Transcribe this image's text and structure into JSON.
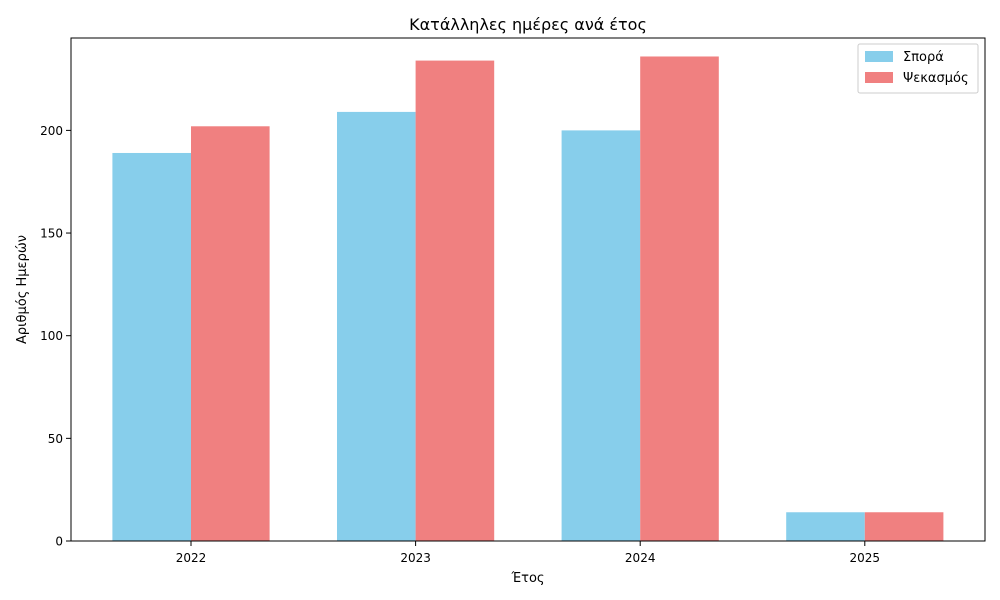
{
  "chart_data": {
    "type": "bar",
    "title": "Κατάλληλες ημέρες ανά έτος",
    "xlabel": "Έτος",
    "ylabel": "Αριθμός Ημερών",
    "categories": [
      "2022",
      "2023",
      "2024",
      "2025"
    ],
    "series": [
      {
        "name": "Σπορά",
        "values": [
          189,
          209,
          200,
          14
        ],
        "color": "#87ceeb"
      },
      {
        "name": "Ψεκασμός",
        "values": [
          202,
          234,
          236,
          14
        ],
        "color": "#f08080"
      }
    ],
    "ylim": [
      0,
      245
    ],
    "yticks": [
      0,
      50,
      100,
      150,
      200
    ],
    "legend": "top-right",
    "grid": false
  }
}
